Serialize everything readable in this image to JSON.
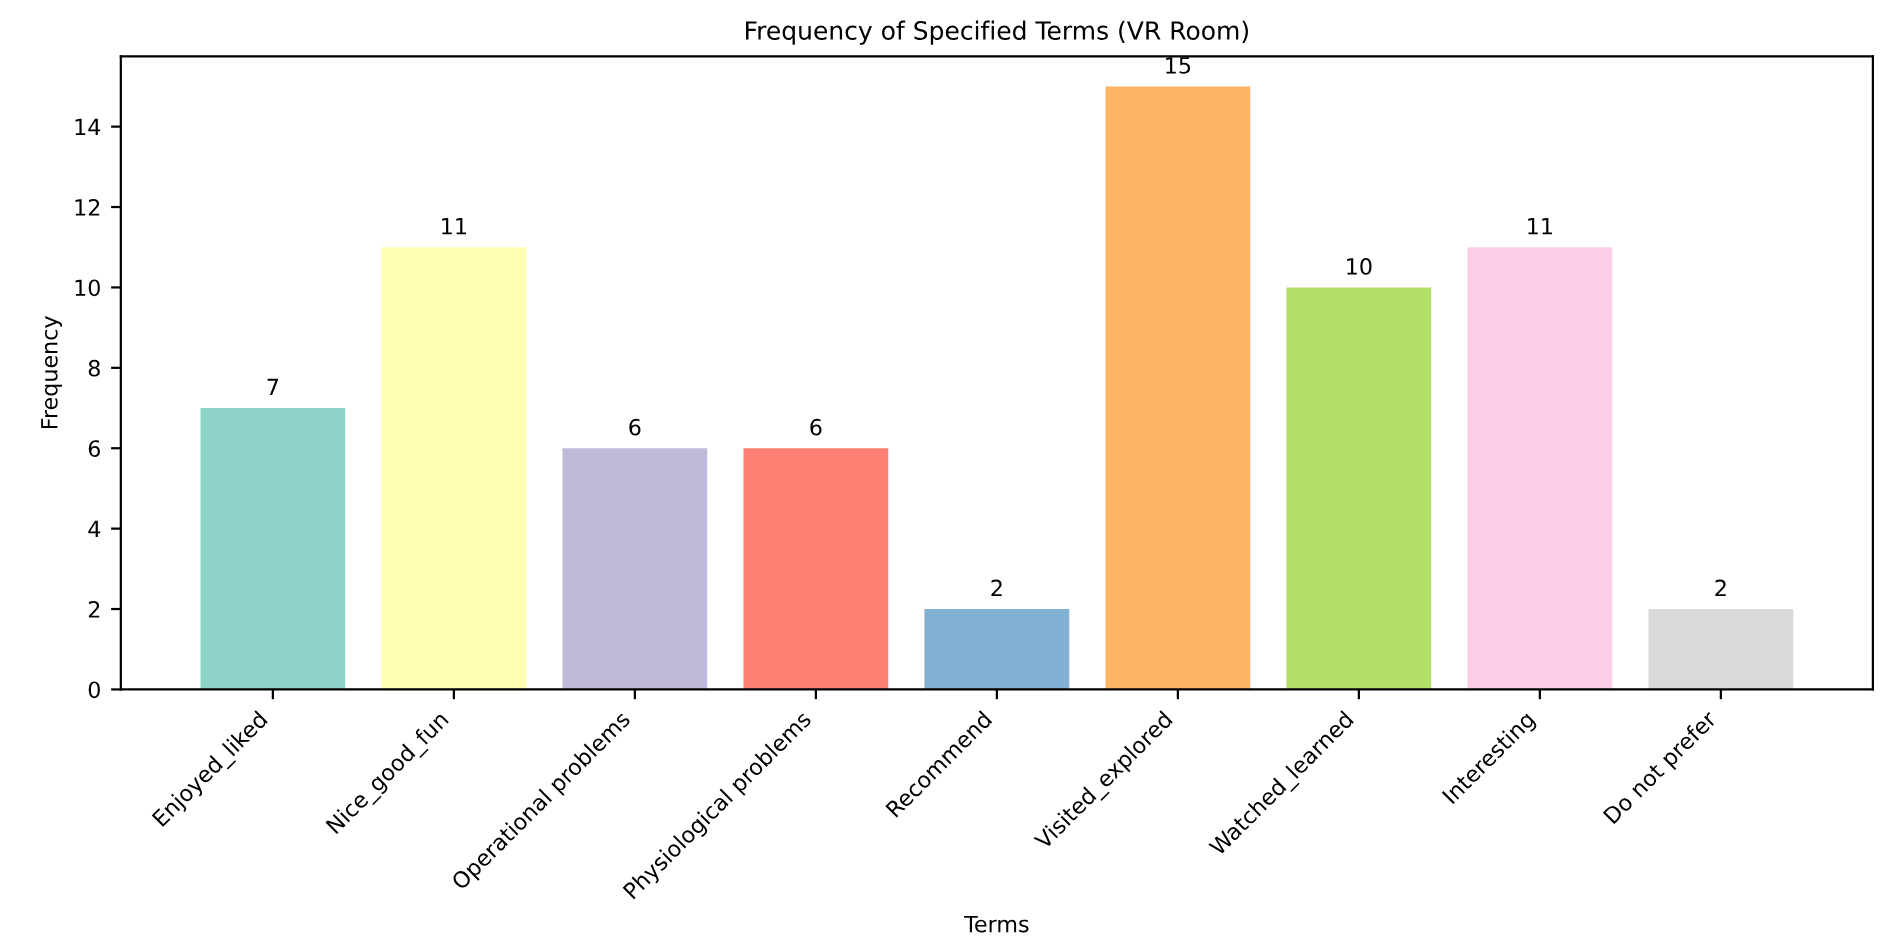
{
  "chart_data": {
    "type": "bar",
    "title": "Frequency of Specified Terms (VR Room)",
    "xlabel": "Terms",
    "ylabel": "Frequency",
    "categories": [
      "Enjoyed_liked",
      "Nice_good_fun",
      "Operational problems",
      "Physiological problems",
      "Recommend",
      "Visited_explored",
      "Watched_learned",
      "Interesting",
      "Do not prefer"
    ],
    "values": [
      7,
      11,
      6,
      6,
      2,
      15,
      10,
      11,
      2
    ],
    "colors": [
      "#8dd3c7",
      "#ffffb3",
      "#bebada",
      "#fb8072",
      "#80b1d3",
      "#fdb462",
      "#b3de69",
      "#fccde5",
      "#d9d9d9"
    ],
    "ylim": [
      0,
      15.75
    ],
    "yticks": [
      0,
      2,
      4,
      6,
      8,
      10,
      12,
      14
    ],
    "grid": false,
    "data_labels": true
  }
}
